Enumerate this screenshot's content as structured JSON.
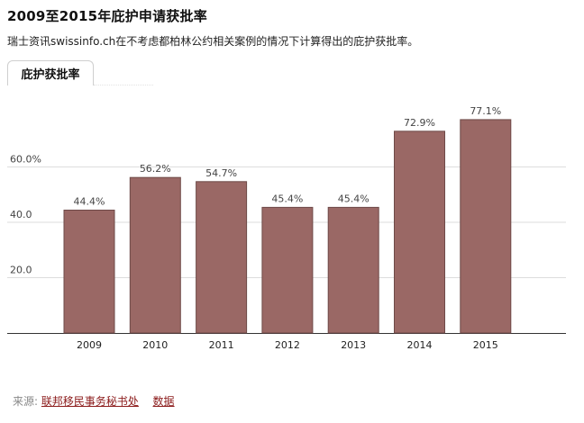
{
  "header": {
    "title": "2009至2015年庇护申请获批率",
    "subtitle": "瑞士资讯swissinfo.ch在不考虑都柏林公约相关案例的情况下计算得出的庇护获批率。"
  },
  "tab": {
    "label": "庇护获批率"
  },
  "footer": {
    "source_label": "来源:",
    "source_link": "联邦移民事务秘书处",
    "data_link": "数据"
  },
  "colors": {
    "bar": "#9a6865",
    "bar_border": "#6e4a48",
    "grid": "#dddddd",
    "axis": "#333333"
  },
  "chart_data": {
    "type": "bar",
    "categories": [
      "2009",
      "2010",
      "2011",
      "2012",
      "2013",
      "2014",
      "2015"
    ],
    "values": [
      44.4,
      56.2,
      54.7,
      45.4,
      45.4,
      72.9,
      77.1
    ],
    "value_labels": [
      "44.4%",
      "56.2%",
      "54.7%",
      "45.4%",
      "45.4%",
      "72.9%",
      "77.1%"
    ],
    "y_ticks": [
      20,
      40,
      60
    ],
    "y_tick_labels": [
      "20.0",
      "40.0",
      "60.0%"
    ],
    "ylim": [
      0,
      80
    ],
    "grid": true
  }
}
